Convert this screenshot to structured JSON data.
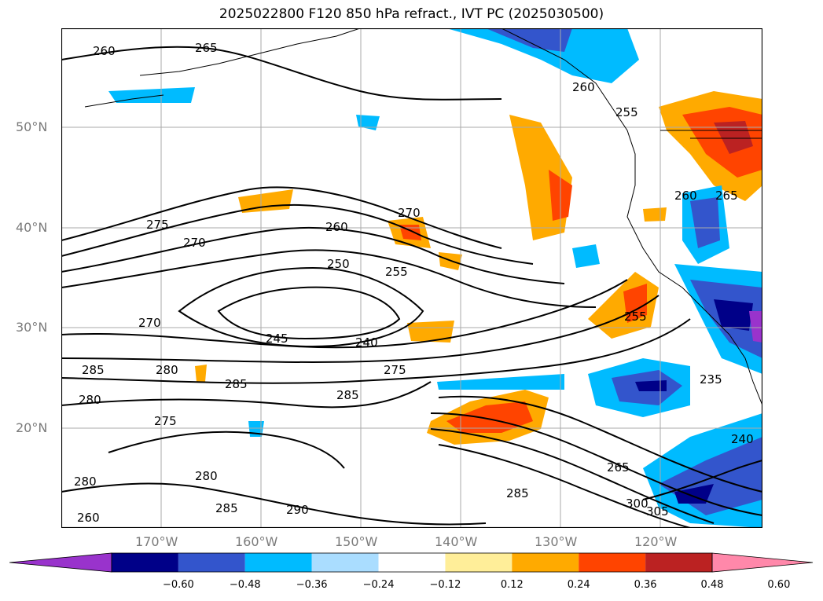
{
  "title": "2025022800 F120 850 hPa refract., IVT PC (2025030500)",
  "lat_ticks": [
    "50°N",
    "40°N",
    "30°N",
    "20°N"
  ],
  "lon_ticks": [
    "170°W",
    "160°W",
    "150°W",
    "140°W",
    "130°W",
    "120°W"
  ],
  "colorbar": {
    "colors": [
      "#9933cc",
      "#000088",
      "#3355cc",
      "#00bbff",
      "#aaddff",
      "#ffffff",
      "#ffee99",
      "#ffaa00",
      "#ff4400",
      "#bb2222",
      "#ff88aa"
    ],
    "labels": [
      "−0.60",
      "−0.48",
      "−0.36",
      "−0.24",
      "−0.12",
      "0.12",
      "0.24",
      "0.36",
      "0.48",
      "0.60"
    ]
  },
  "contour_labels": [
    "260",
    "265",
    "260",
    "255",
    "270",
    "275",
    "270",
    "260",
    "250",
    "255",
    "245",
    "240",
    "270",
    "285",
    "280",
    "285",
    "280",
    "275",
    "275",
    "285",
    "280",
    "280",
    "285",
    "290",
    "265",
    "285",
    "300",
    "305",
    "240",
    "235",
    "255",
    "260",
    "265",
    "260"
  ]
}
